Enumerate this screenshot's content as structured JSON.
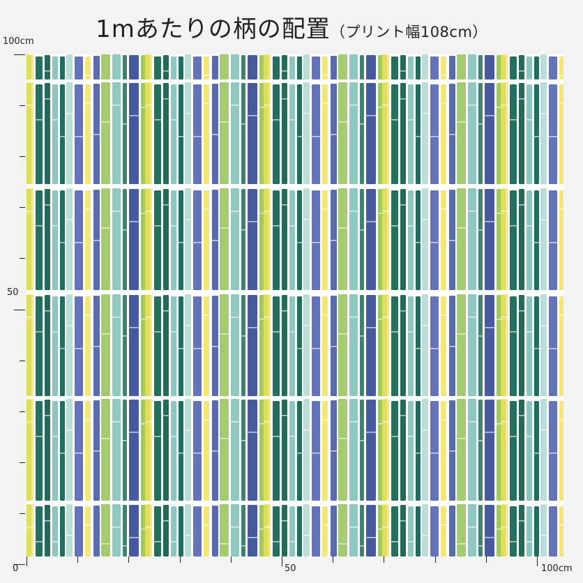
{
  "header": {
    "title": "1mあたりの柄の配置",
    "subtitle": "（プリント幅108cm）"
  },
  "axes": {
    "left_top_label": "100cm",
    "left_mid_label": "50",
    "bottom_origin_label": "0",
    "bottom_mid_label": "50",
    "bottom_end_label": "100cm"
  },
  "pattern": {
    "colors": [
      "#1d6b5a",
      "#2f9a6c",
      "#3b4fa8",
      "#2a3f8f",
      "#8fc04a",
      "#f0e35a",
      "#6fb8b0",
      "#0f5a48",
      "#4a7fa0",
      "#a8d6cf"
    ]
  }
}
